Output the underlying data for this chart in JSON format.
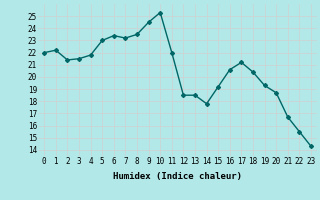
{
  "x": [
    0,
    1,
    2,
    3,
    4,
    5,
    6,
    7,
    8,
    9,
    10,
    11,
    12,
    13,
    14,
    15,
    16,
    17,
    18,
    19,
    20,
    21,
    22,
    23
  ],
  "y": [
    22,
    22.2,
    21.4,
    21.5,
    21.8,
    23,
    23.4,
    23.2,
    23.5,
    24.5,
    25.3,
    22,
    18.5,
    18.5,
    17.8,
    19.2,
    20.6,
    21.2,
    20.4,
    19.3,
    18.7,
    16.7,
    15.5,
    14.3
  ],
  "line_color": "#006666",
  "marker": "D",
  "marker_size": 2,
  "bg_color": "#b3e8e8",
  "grid_color": "#d0d0d0",
  "xlabel": "Humidex (Indice chaleur)",
  "ylim": [
    13.5,
    26
  ],
  "xlim": [
    -0.5,
    23.5
  ],
  "yticks": [
    14,
    15,
    16,
    17,
    18,
    19,
    20,
    21,
    22,
    23,
    24,
    25
  ],
  "xticks": [
    0,
    1,
    2,
    3,
    4,
    5,
    6,
    7,
    8,
    9,
    10,
    11,
    12,
    13,
    14,
    15,
    16,
    17,
    18,
    19,
    20,
    21,
    22,
    23
  ],
  "xtick_labels": [
    "0",
    "1",
    "2",
    "3",
    "4",
    "5",
    "6",
    "7",
    "8",
    "9",
    "10",
    "11",
    "12",
    "13",
    "14",
    "15",
    "16",
    "17",
    "18",
    "19",
    "20",
    "21",
    "22",
    "23"
  ],
  "xlabel_fontsize": 6.5,
  "tick_fontsize": 5.5,
  "linewidth": 1.0
}
